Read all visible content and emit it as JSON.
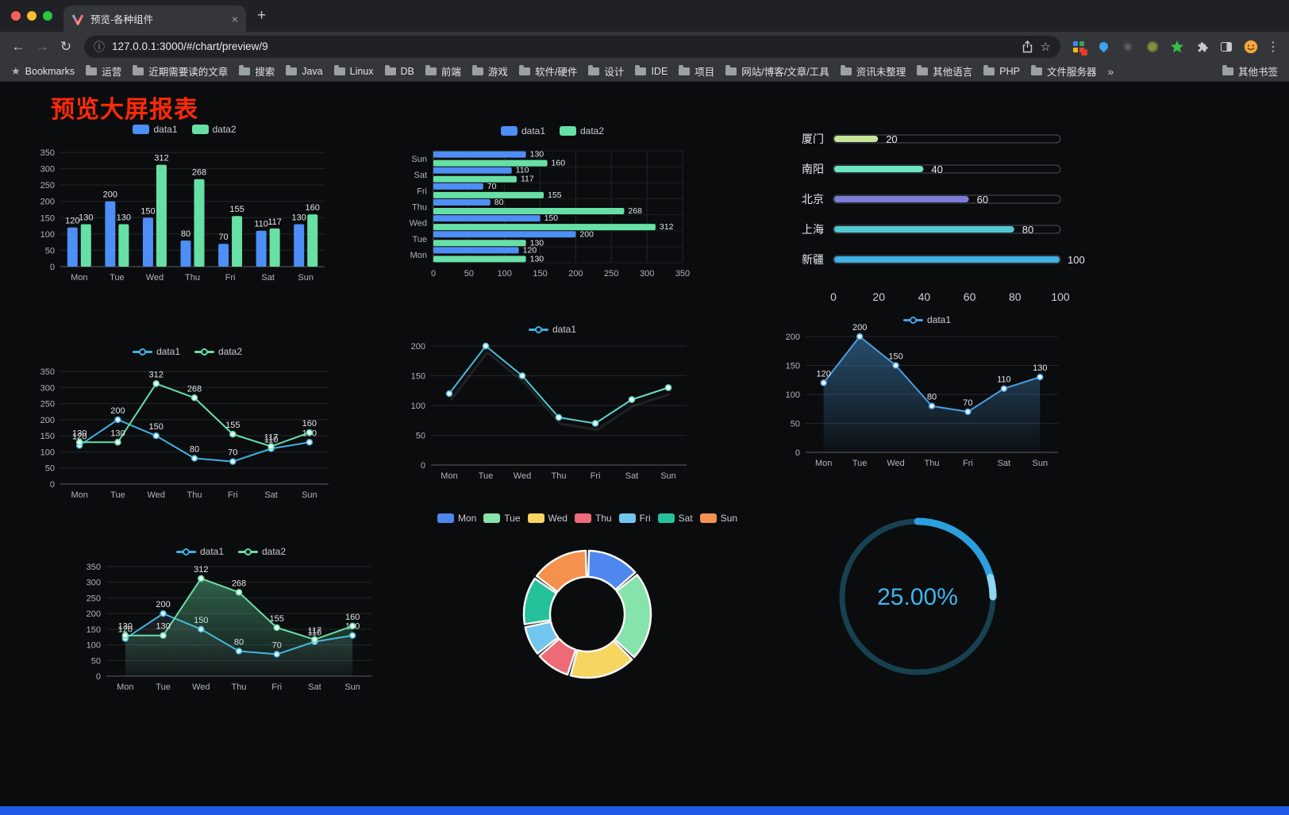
{
  "browser": {
    "tab": {
      "title": "预览-各种组件",
      "close_icon": "×"
    },
    "new_tab_icon": "+",
    "nav": {
      "back_icon": "←",
      "forward_icon": "→",
      "reload_icon": "↻"
    },
    "address": {
      "info_icon": "ⓘ",
      "url": "127.0.0.1:3000/#/chart/preview/9",
      "star_icon": "☆"
    },
    "menu_icon": "⋮",
    "bookmarks_bar": {
      "star_icon": "★",
      "manager_label": "Bookmarks",
      "folders": [
        "运营",
        "近期需要读的文章",
        "搜索",
        "Java",
        "Linux",
        "DB",
        "前端",
        "游戏",
        "软件/硬件",
        "设计",
        "IDE",
        "项目",
        "网站/博客/文章/工具",
        "资讯未整理",
        "其他语言",
        "PHP",
        "文件服务器"
      ],
      "overflow_icon": "»",
      "other_bookmarks_label": "其他书签"
    }
  },
  "page": {
    "title": "预览大屏报表"
  },
  "chart_data": [
    {
      "id": "bar-grouped",
      "type": "bar",
      "categories": [
        "Mon",
        "Tue",
        "Wed",
        "Thu",
        "Fri",
        "Sat",
        "Sun"
      ],
      "series": [
        {
          "name": "data1",
          "color": "#4d8ef7",
          "values": [
            120,
            200,
            150,
            80,
            70,
            110,
            130
          ]
        },
        {
          "name": "data2",
          "color": "#67e0a5",
          "values": [
            130,
            130,
            312,
            268,
            155,
            117,
            160
          ]
        }
      ],
      "ylim": [
        0,
        350
      ],
      "ytick_step": 50,
      "grid": true,
      "legend_position": "top",
      "value_labels": true
    },
    {
      "id": "bar-horizontal",
      "type": "bar",
      "orientation": "horizontal",
      "categories": [
        "Mon",
        "Tue",
        "Wed",
        "Thu",
        "Fri",
        "Sat",
        "Sun"
      ],
      "series": [
        {
          "name": "data1",
          "color": "#4d8ef7",
          "values": [
            120,
            200,
            150,
            80,
            70,
            110,
            130
          ]
        },
        {
          "name": "data2",
          "color": "#67e0a5",
          "values": [
            130,
            130,
            312,
            268,
            155,
            117,
            160
          ]
        }
      ],
      "xlim": [
        0,
        350
      ],
      "xtick_step": 50,
      "grid": true,
      "legend_position": "top",
      "value_labels": true
    },
    {
      "id": "progress-bars",
      "type": "bar",
      "variant": "progress",
      "categories": [
        "厦门",
        "南阳",
        "北京",
        "上海",
        "新疆"
      ],
      "values": [
        20,
        40,
        60,
        80,
        100
      ],
      "colors": [
        "#c8e49b",
        "#6be6c1",
        "#7b7dd8",
        "#52c8d2",
        "#3fb1e3"
      ],
      "xlim": [
        0,
        100
      ],
      "xticks": [
        0,
        20,
        40,
        60,
        80,
        100
      ]
    },
    {
      "id": "line-dual",
      "type": "line",
      "categories": [
        "Mon",
        "Tue",
        "Wed",
        "Thu",
        "Fri",
        "Sat",
        "Sun"
      ],
      "series": [
        {
          "name": "data1",
          "color": "#3fb1e3",
          "values": [
            120,
            200,
            150,
            80,
            70,
            110,
            130
          ]
        },
        {
          "name": "data2",
          "color": "#67e0a5",
          "values": [
            130,
            130,
            312,
            268,
            155,
            117,
            160
          ]
        }
      ],
      "ylim": [
        0,
        350
      ],
      "ytick_step": 50,
      "grid": true,
      "legend_position": "top",
      "value_labels": true
    },
    {
      "id": "line-single",
      "type": "line",
      "categories": [
        "Mon",
        "Tue",
        "Wed",
        "Thu",
        "Fri",
        "Sat",
        "Sun"
      ],
      "series": [
        {
          "name": "data1",
          "color_gradient": [
            "#3fb1e3",
            "#6be6c1"
          ],
          "values": [
            120,
            200,
            150,
            80,
            70,
            110,
            130
          ]
        }
      ],
      "ylim": [
        0,
        200
      ],
      "ytick_step": 50,
      "grid": true,
      "legend_position": "top",
      "value_labels": false,
      "shadow": true
    },
    {
      "id": "area-single",
      "type": "area",
      "categories": [
        "Mon",
        "Tue",
        "Wed",
        "Thu",
        "Fri",
        "Sat",
        "Sun"
      ],
      "series": [
        {
          "name": "data1",
          "color": "#4a9fe0",
          "area": true,
          "area_from": "rgba(74,159,224,0.45)",
          "area_to": "rgba(74,159,224,0.03)",
          "values": [
            120,
            200,
            150,
            80,
            70,
            110,
            130
          ]
        }
      ],
      "ylim": [
        0,
        200
      ],
      "ytick_step": 50,
      "grid": true,
      "legend_position": "top",
      "value_labels": true
    },
    {
      "id": "area-dual",
      "type": "area",
      "categories": [
        "Mon",
        "Tue",
        "Wed",
        "Thu",
        "Fri",
        "Sat",
        "Sun"
      ],
      "series": [
        {
          "name": "data1",
          "color": "#3fb1e3",
          "area": true,
          "area_from": "rgba(110,130,150,0.30)",
          "area_to": "rgba(110,130,150,0.03)",
          "values": [
            120,
            200,
            150,
            80,
            70,
            110,
            130
          ]
        },
        {
          "name": "data2",
          "color": "#67e0a5",
          "area": true,
          "area_from": "rgba(103,224,165,0.45)",
          "area_to": "rgba(103,224,165,0.04)",
          "values": [
            130,
            130,
            312,
            268,
            155,
            117,
            160
          ]
        }
      ],
      "ylim": [
        0,
        350
      ],
      "ytick_step": 50,
      "grid": true,
      "legend_position": "top",
      "value_labels": true
    },
    {
      "id": "donut",
      "type": "pie",
      "ring": true,
      "categories": [
        "Mon",
        "Tue",
        "Wed",
        "Thu",
        "Fri",
        "Sat",
        "Sun"
      ],
      "values": [
        120,
        200,
        150,
        80,
        70,
        110,
        130
      ],
      "colors": [
        "#4e87ee",
        "#85e3ab",
        "#f6d560",
        "#ed6a77",
        "#71c6ee",
        "#25c19b",
        "#f3914d"
      ],
      "legend_position": "top"
    },
    {
      "id": "gauge",
      "type": "gauge",
      "percent": 25,
      "value_label": "25.00%",
      "color": "#2ba0dd",
      "tip_color": "#8ed6f2",
      "track_color": "#17414f",
      "label_color": "#41b5e9"
    }
  ]
}
